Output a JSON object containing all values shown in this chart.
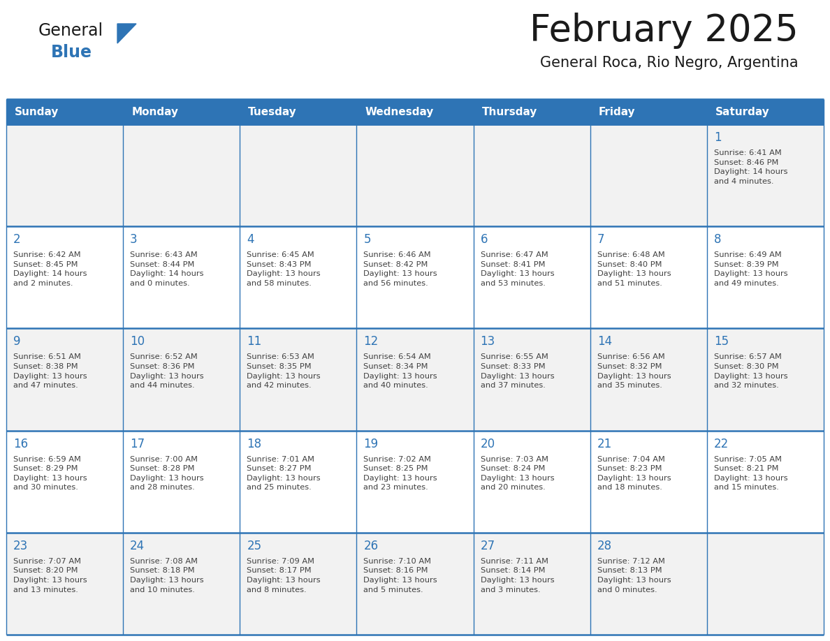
{
  "title": "February 2025",
  "subtitle": "General Roca, Rio Negro, Argentina",
  "header_color": "#2e74b5",
  "header_text_color": "#ffffff",
  "cell_bg_white": "#ffffff",
  "cell_bg_gray": "#f2f2f2",
  "border_color": "#2e74b5",
  "border_color_light": "#a0b4c8",
  "day_number_color": "#2e74b5",
  "cell_text_color": "#404040",
  "days_of_week": [
    "Sunday",
    "Monday",
    "Tuesday",
    "Wednesday",
    "Thursday",
    "Friday",
    "Saturday"
  ],
  "logo_general_color": "#1a1a1a",
  "logo_blue_color": "#2e74b5",
  "calendar_data": [
    [
      null,
      null,
      null,
      null,
      null,
      null,
      {
        "day": 1,
        "sunrise": "6:41 AM",
        "sunset": "8:46 PM",
        "daylight": "14 hours\nand 4 minutes."
      }
    ],
    [
      {
        "day": 2,
        "sunrise": "6:42 AM",
        "sunset": "8:45 PM",
        "daylight": "14 hours\nand 2 minutes."
      },
      {
        "day": 3,
        "sunrise": "6:43 AM",
        "sunset": "8:44 PM",
        "daylight": "14 hours\nand 0 minutes."
      },
      {
        "day": 4,
        "sunrise": "6:45 AM",
        "sunset": "8:43 PM",
        "daylight": "13 hours\nand 58 minutes."
      },
      {
        "day": 5,
        "sunrise": "6:46 AM",
        "sunset": "8:42 PM",
        "daylight": "13 hours\nand 56 minutes."
      },
      {
        "day": 6,
        "sunrise": "6:47 AM",
        "sunset": "8:41 PM",
        "daylight": "13 hours\nand 53 minutes."
      },
      {
        "day": 7,
        "sunrise": "6:48 AM",
        "sunset": "8:40 PM",
        "daylight": "13 hours\nand 51 minutes."
      },
      {
        "day": 8,
        "sunrise": "6:49 AM",
        "sunset": "8:39 PM",
        "daylight": "13 hours\nand 49 minutes."
      }
    ],
    [
      {
        "day": 9,
        "sunrise": "6:51 AM",
        "sunset": "8:38 PM",
        "daylight": "13 hours\nand 47 minutes."
      },
      {
        "day": 10,
        "sunrise": "6:52 AM",
        "sunset": "8:36 PM",
        "daylight": "13 hours\nand 44 minutes."
      },
      {
        "day": 11,
        "sunrise": "6:53 AM",
        "sunset": "8:35 PM",
        "daylight": "13 hours\nand 42 minutes."
      },
      {
        "day": 12,
        "sunrise": "6:54 AM",
        "sunset": "8:34 PM",
        "daylight": "13 hours\nand 40 minutes."
      },
      {
        "day": 13,
        "sunrise": "6:55 AM",
        "sunset": "8:33 PM",
        "daylight": "13 hours\nand 37 minutes."
      },
      {
        "day": 14,
        "sunrise": "6:56 AM",
        "sunset": "8:32 PM",
        "daylight": "13 hours\nand 35 minutes."
      },
      {
        "day": 15,
        "sunrise": "6:57 AM",
        "sunset": "8:30 PM",
        "daylight": "13 hours\nand 32 minutes."
      }
    ],
    [
      {
        "day": 16,
        "sunrise": "6:59 AM",
        "sunset": "8:29 PM",
        "daylight": "13 hours\nand 30 minutes."
      },
      {
        "day": 17,
        "sunrise": "7:00 AM",
        "sunset": "8:28 PM",
        "daylight": "13 hours\nand 28 minutes."
      },
      {
        "day": 18,
        "sunrise": "7:01 AM",
        "sunset": "8:27 PM",
        "daylight": "13 hours\nand 25 minutes."
      },
      {
        "day": 19,
        "sunrise": "7:02 AM",
        "sunset": "8:25 PM",
        "daylight": "13 hours\nand 23 minutes."
      },
      {
        "day": 20,
        "sunrise": "7:03 AM",
        "sunset": "8:24 PM",
        "daylight": "13 hours\nand 20 minutes."
      },
      {
        "day": 21,
        "sunrise": "7:04 AM",
        "sunset": "8:23 PM",
        "daylight": "13 hours\nand 18 minutes."
      },
      {
        "day": 22,
        "sunrise": "7:05 AM",
        "sunset": "8:21 PM",
        "daylight": "13 hours\nand 15 minutes."
      }
    ],
    [
      {
        "day": 23,
        "sunrise": "7:07 AM",
        "sunset": "8:20 PM",
        "daylight": "13 hours\nand 13 minutes."
      },
      {
        "day": 24,
        "sunrise": "7:08 AM",
        "sunset": "8:18 PM",
        "daylight": "13 hours\nand 10 minutes."
      },
      {
        "day": 25,
        "sunrise": "7:09 AM",
        "sunset": "8:17 PM",
        "daylight": "13 hours\nand 8 minutes."
      },
      {
        "day": 26,
        "sunrise": "7:10 AM",
        "sunset": "8:16 PM",
        "daylight": "13 hours\nand 5 minutes."
      },
      {
        "day": 27,
        "sunrise": "7:11 AM",
        "sunset": "8:14 PM",
        "daylight": "13 hours\nand 3 minutes."
      },
      {
        "day": 28,
        "sunrise": "7:12 AM",
        "sunset": "8:13 PM",
        "daylight": "13 hours\nand 0 minutes."
      },
      null
    ]
  ]
}
